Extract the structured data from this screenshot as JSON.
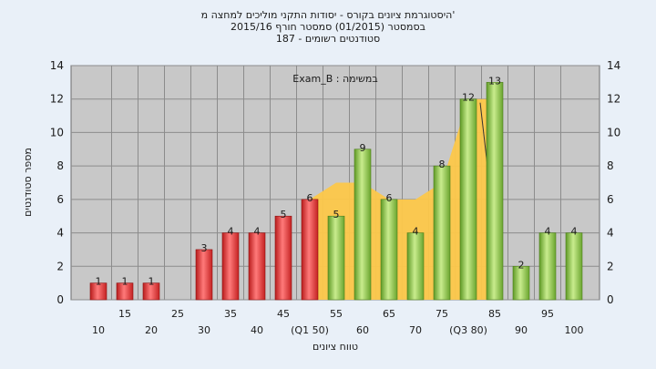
{
  "chart_data": {
    "type": "bar",
    "title_lines": [
      "היסטוגרמת ציונים בקורס - יסודות התקני מוליכים למחצה מ'",
      "בסמסטר  (01/2015)  סמסטר חורף 2015/16",
      "סטודנטים רשומים - 187"
    ],
    "annotation": "במשימה : Exam_B",
    "ylabel": "מספר סטודנטים",
    "xlabel": "טווח ציונים",
    "ylim": [
      0,
      14
    ],
    "yticks": [
      0,
      2,
      4,
      6,
      8,
      10,
      12,
      14
    ],
    "categories": [
      10,
      15,
      20,
      25,
      30,
      35,
      40,
      45,
      50,
      55,
      60,
      65,
      70,
      75,
      80,
      85,
      90,
      95,
      100
    ],
    "tick_labels": [
      "10",
      "15",
      "20",
      "25",
      "30",
      "35",
      "40",
      "45",
      "(Q1 50)",
      "55",
      "60",
      "65",
      "70",
      "75",
      "(Q3 80)",
      "85",
      "90",
      "95",
      "100"
    ],
    "values": [
      1,
      1,
      1,
      0,
      3,
      4,
      4,
      5,
      6,
      5,
      9,
      6,
      4,
      8,
      12,
      13,
      2,
      4,
      4
    ],
    "value_labels": [
      "1",
      "1",
      "1",
      "",
      "3",
      "4",
      "4",
      "5",
      "6",
      "5",
      "9",
      "6",
      "4",
      "8",
      "12",
      "13",
      "2",
      "4",
      "4"
    ],
    "bar_colors": [
      "red",
      "red",
      "red",
      "red",
      "red",
      "red",
      "red",
      "red",
      "red",
      "green",
      "green",
      "green",
      "green",
      "green",
      "green",
      "green",
      "green",
      "green",
      "green"
    ],
    "band": {
      "x_from": 50,
      "x_to": 85,
      "values": [
        6,
        7,
        7,
        6,
        6,
        7,
        12,
        12
      ]
    },
    "grid": true,
    "colors": {
      "red_bar": "#e53535",
      "green_bar": "#8ec64a",
      "band": "#fdc84a",
      "plot_bg": "#c8c8c8",
      "grid": "#8c8c8c"
    }
  }
}
